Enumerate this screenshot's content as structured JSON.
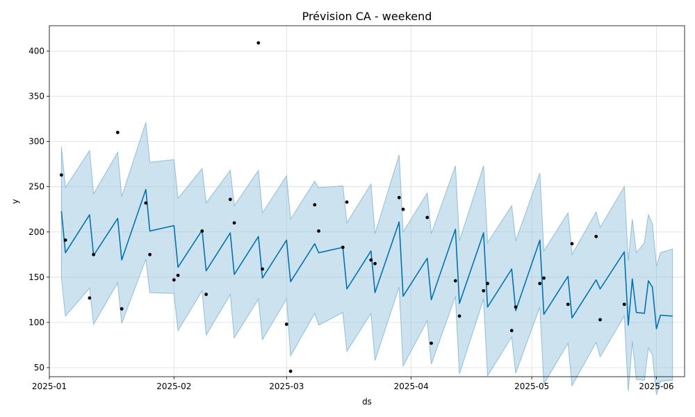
{
  "chart_data": {
    "type": "line",
    "title": "Prévision CA - weekend",
    "xlabel": "ds",
    "ylabel": "y",
    "x_axis_type": "date",
    "xlim": [
      "2025-01-01",
      "2025-06-08"
    ],
    "ylim": [
      40,
      428
    ],
    "x_ticks": [
      "2025-01-01",
      "2025-02-01",
      "2025-03-01",
      "2025-04-01",
      "2025-05-01",
      "2025-06-01"
    ],
    "x_tick_labels": [
      "2025-01",
      "2025-02",
      "2025-03",
      "2025-04",
      "2025-05",
      "2025-06"
    ],
    "y_ticks": [
      50,
      100,
      150,
      200,
      250,
      300,
      350,
      400
    ],
    "y_tick_labels": [
      "50",
      "100",
      "150",
      "200",
      "250",
      "300",
      "350",
      "400"
    ],
    "grid": true,
    "colors": {
      "forecast": "#0072B2",
      "band": "#8fbedc",
      "observed": "#000000"
    },
    "series": [
      {
        "kind": "observed-points",
        "x": [
          "2025-01-04",
          "2025-01-05",
          "2025-01-11",
          "2025-01-12",
          "2025-01-18",
          "2025-01-19",
          "2025-01-25",
          "2025-01-26",
          "2025-02-01",
          "2025-02-02",
          "2025-02-08",
          "2025-02-09",
          "2025-02-15",
          "2025-02-16",
          "2025-02-22",
          "2025-02-23",
          "2025-03-01",
          "2025-03-02",
          "2025-03-08",
          "2025-03-09",
          "2025-03-15",
          "2025-03-16",
          "2025-03-22",
          "2025-03-23",
          "2025-03-29",
          "2025-03-30",
          "2025-04-05",
          "2025-04-06",
          "2025-04-12",
          "2025-04-13",
          "2025-04-19",
          "2025-04-20",
          "2025-04-26",
          "2025-04-27",
          "2025-05-03",
          "2025-05-04",
          "2025-05-10",
          "2025-05-11",
          "2025-05-17",
          "2025-05-18",
          "2025-05-24"
        ],
        "y": [
          263,
          191,
          127,
          175,
          310,
          115,
          232,
          175,
          147,
          152,
          201,
          131,
          236,
          210,
          409,
          159,
          98,
          46,
          230,
          201,
          183,
          233,
          169,
          165,
          238,
          225,
          216,
          77,
          146,
          107,
          135,
          143,
          91,
          117,
          143,
          149,
          120,
          187,
          195,
          103,
          120
        ]
      },
      {
        "kind": "forecast-line",
        "x": [
          "2025-01-04",
          "2025-01-05",
          "2025-01-11",
          "2025-01-12",
          "2025-01-18",
          "2025-01-19",
          "2025-01-25",
          "2025-01-26",
          "2025-02-01",
          "2025-02-02",
          "2025-02-08",
          "2025-02-09",
          "2025-02-15",
          "2025-02-16",
          "2025-02-22",
          "2025-02-23",
          "2025-03-01",
          "2025-03-02",
          "2025-03-08",
          "2025-03-09",
          "2025-03-15",
          "2025-03-16",
          "2025-03-22",
          "2025-03-23",
          "2025-03-29",
          "2025-03-30",
          "2025-04-05",
          "2025-04-06",
          "2025-04-12",
          "2025-04-13",
          "2025-04-19",
          "2025-04-20",
          "2025-04-26",
          "2025-04-27",
          "2025-05-03",
          "2025-05-04",
          "2025-05-10",
          "2025-05-11",
          "2025-05-17",
          "2025-05-18",
          "2025-05-24",
          "2025-05-25",
          "2025-05-26",
          "2025-05-27",
          "2025-05-29",
          "2025-05-30",
          "2025-05-31",
          "2025-06-01",
          "2025-06-02",
          "2025-06-05"
        ],
        "y": [
          223,
          177,
          219,
          174,
          215,
          169,
          247,
          201,
          207,
          161,
          202,
          157,
          199,
          153,
          195,
          149,
          191,
          145,
          187,
          177,
          183,
          137,
          179,
          133,
          211,
          129,
          171,
          125,
          203,
          121,
          199,
          117,
          159,
          113,
          191,
          109,
          151,
          105,
          147,
          137,
          178,
          97,
          148,
          111,
          110,
          146,
          139,
          93,
          108,
          107
        ],
        "lower": [
          150,
          107,
          138,
          98,
          144,
          99,
          170,
          133,
          132,
          91,
          135,
          86,
          131,
          83,
          126,
          81,
          126,
          63,
          110,
          97,
          111,
          68,
          110,
          58,
          139,
          52,
          102,
          54,
          129,
          43,
          126,
          41,
          84,
          44,
          117,
          32,
          77,
          30,
          78,
          62,
          107,
          24,
          79,
          37,
          36,
          72,
          64,
          20,
          35,
          36
        ],
        "upper": [
          294,
          249,
          290,
          242,
          288,
          239,
          321,
          277,
          280,
          237,
          270,
          232,
          268,
          229,
          268,
          221,
          262,
          214,
          256,
          249,
          251,
          210,
          253,
          198,
          285,
          200,
          243,
          198,
          273,
          190,
          273,
          188,
          229,
          190,
          265,
          179,
          221,
          175,
          222,
          205,
          250,
          168,
          214,
          177,
          188,
          219,
          209,
          162,
          177,
          181
        ]
      }
    ]
  }
}
